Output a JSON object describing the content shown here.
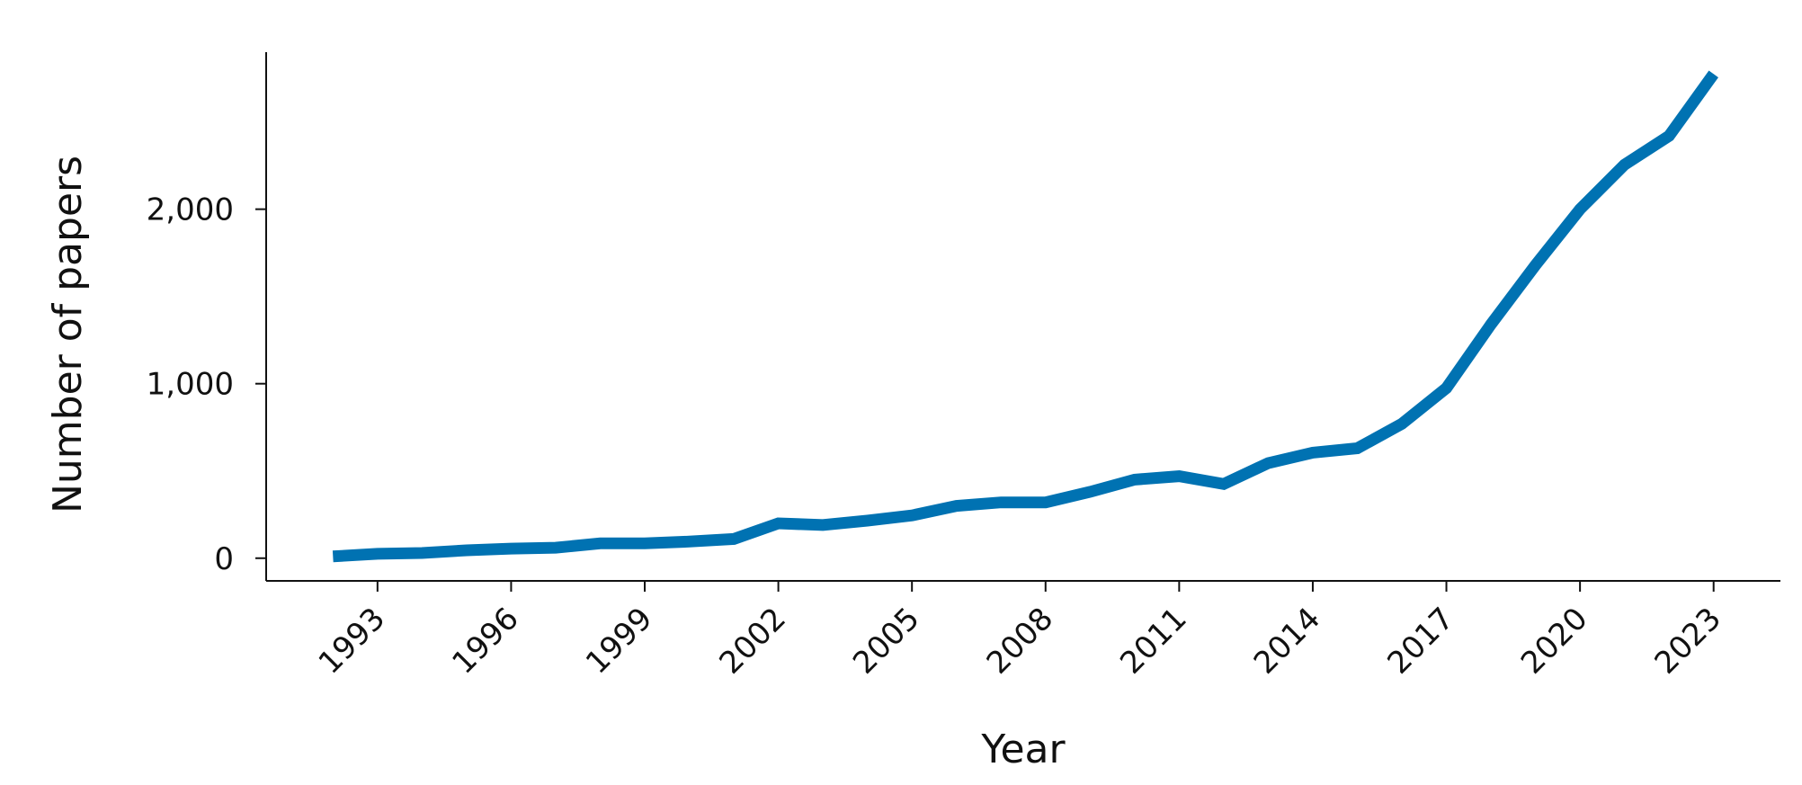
{
  "chart_data": {
    "type": "line",
    "title": "",
    "xlabel": "Year",
    "ylabel": "Number of papers",
    "xlim": [
      1990.5,
      2024.5
    ],
    "ylim": [
      -130,
      2900
    ],
    "x_ticks": [
      1993,
      1996,
      1999,
      2002,
      2005,
      2008,
      2011,
      2014,
      2017,
      2020,
      2023
    ],
    "x_tick_labels": [
      "1993",
      "1996",
      "1999",
      "2002",
      "2005",
      "2008",
      "2011",
      "2014",
      "2017",
      "2020",
      "2023"
    ],
    "y_ticks": [
      0,
      1000,
      2000
    ],
    "y_tick_labels": [
      "0",
      "1,000",
      "2,000"
    ],
    "grid": false,
    "line_color": "#0072b2",
    "series": [
      {
        "x": [
          1992,
          1993,
          1994,
          1995,
          1996,
          1997,
          1998,
          1999,
          2000,
          2001,
          2002,
          2003,
          2004,
          2005,
          2006,
          2007,
          2008,
          2009,
          2010,
          2011,
          2012,
          2013,
          2014,
          2015,
          2016,
          2017,
          2018,
          2019,
          2020,
          2021,
          2022,
          2023
        ],
        "values": [
          10,
          25,
          30,
          45,
          55,
          60,
          85,
          85,
          95,
          110,
          200,
          190,
          215,
          245,
          300,
          320,
          320,
          380,
          450,
          470,
          425,
          545,
          605,
          630,
          770,
          975,
          1340,
          1680,
          2000,
          2255,
          2420,
          2775
        ]
      }
    ]
  }
}
